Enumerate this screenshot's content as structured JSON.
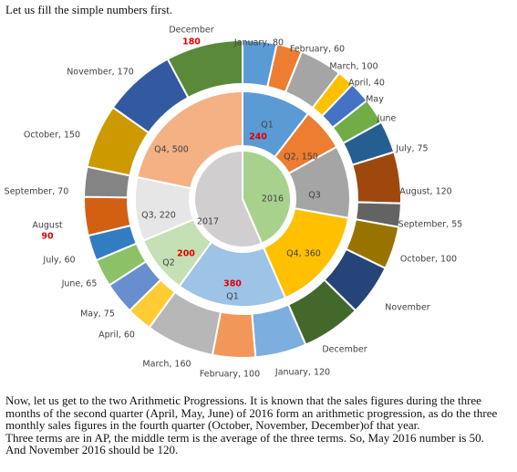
{
  "intro": "Let us fill the simple numbers first.",
  "chart_data": {
    "type": "sunburst",
    "years": [
      {
        "label": "2016",
        "color": "#a9d18e",
        "quarters": [
          {
            "label": "Q1",
            "value": 240,
            "value_label": "240",
            "color": "#5b9bd5",
            "months": [
              {
                "label": "January, 80",
                "value": 80,
                "color": "#5b9bd5"
              },
              {
                "label": "February, 60",
                "value": 60,
                "color": "#ed7d31"
              },
              {
                "label": "March, 100",
                "value": 100,
                "color": "#a5a5a5"
              }
            ]
          },
          {
            "label": "Q2, 150",
            "value": 150,
            "color": "#ed7d31",
            "months": [
              {
                "label": "April, 40",
                "value": 40,
                "color": "#ffc000"
              },
              {
                "label": "May",
                "value": 50,
                "color": "#4472c4"
              },
              {
                "label": "June",
                "value": 60,
                "color": "#70ad47"
              }
            ]
          },
          {
            "label": "Q3",
            "value": 250,
            "color": "#a5a5a5",
            "months": [
              {
                "label": "July, 75",
                "value": 75,
                "color": "#255e91"
              },
              {
                "label": "August, 120",
                "value": 120,
                "color": "#9e480e"
              },
              {
                "label": "September, 55",
                "value": 55,
                "color": "#636363"
              }
            ]
          },
          {
            "label": "Q4, 360",
            "value": 360,
            "color": "#ffc000",
            "months": [
              {
                "label": "October, 100",
                "value": 100,
                "color": "#997300"
              },
              {
                "label": "November",
                "value": 120,
                "color": "#264478"
              },
              {
                "label": "December",
                "value": 140,
                "color": "#43682b"
              }
            ]
          }
        ]
      },
      {
        "label": "2017",
        "color": "#d0cece",
        "quarters": [
          {
            "label": "Q1",
            "value": 380,
            "value_label": "380",
            "color": "#9dc3e6",
            "months": [
              {
                "label": "January, 120",
                "value": 120,
                "color": "#7cafdd"
              },
              {
                "label": "February, 100",
                "value": 100,
                "color": "#f1975a"
              },
              {
                "label": "March, 160",
                "value": 160,
                "color": "#b7b7b7"
              }
            ]
          },
          {
            "label": "Q2",
            "value": 200,
            "value_label": "200",
            "color": "#c5e0b4",
            "months": [
              {
                "label": "April, 60",
                "value": 60,
                "color": "#ffcd33"
              },
              {
                "label": "May, 75",
                "value": 75,
                "color": "#698ed0"
              },
              {
                "label": "June, 65",
                "value": 65,
                "color": "#8cc168"
              }
            ]
          },
          {
            "label": "Q3, 220",
            "value": 220,
            "color": "#e7e6e6",
            "months": [
              {
                "label": "July, 60",
                "value": 60,
                "color": "#327dc2"
              },
              {
                "label": "August",
                "value": 90,
                "value_label": "90",
                "color": "#d26012"
              },
              {
                "label": "September, 70",
                "value": 70,
                "color": "#848484"
              }
            ]
          },
          {
            "label": "Q4, 500",
            "value": 500,
            "color": "#f4b183",
            "months": [
              {
                "label": "October, 150",
                "value": 150,
                "color": "#cc9a00"
              },
              {
                "label": "November, 170",
                "value": 170,
                "color": "#335aa1"
              },
              {
                "label": "December",
                "value": 180,
                "value_label": "180",
                "color": "#5a8a39"
              }
            ]
          }
        ]
      }
    ]
  },
  "paragraphs": [
    "Now, let us get to the two Arithmetic Progressions. It is known that the sales figures during the three months of the second quarter (April, May, June) of 2016 form an arithmetic progression, as do the three monthly sales figures in the fourth quarter (October, November, December)of that year.",
    "Three terms are in AP, the middle term is the average of the three terms. So, May 2016 number is 50. And November 2016 should be 120."
  ]
}
